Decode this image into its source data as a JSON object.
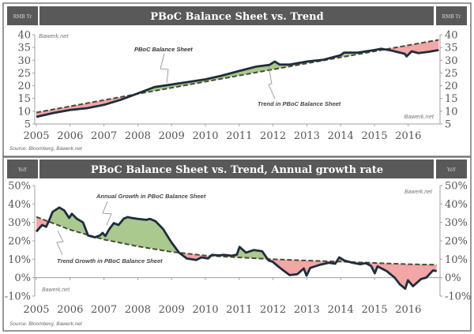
{
  "colors": {
    "header": "#595959",
    "line": "#1f2d3d",
    "trend": "#4a4a3a",
    "above": "#a9c98f",
    "below": "#f2a6a6",
    "axis": "#a0a0a0"
  },
  "chart_data": [
    {
      "type": "area",
      "title": "PBoC Balance Sheet vs. Trend",
      "unit_label": "RMB Tr",
      "source": "Source: Bloomberg, Bawerk.net",
      "watermarks": [
        "Bawerk.net",
        "Bawerk.net"
      ],
      "annotations": [
        "PBoC Balance Sheet",
        "Trend in PBoC Balance Sheet"
      ],
      "xlim": [
        2005,
        2016.9
      ],
      "ylim": [
        5,
        40
      ],
      "x_ticks": [
        "2005",
        "2006",
        "2007",
        "2008",
        "2009",
        "2010",
        "2011",
        "2012",
        "2013",
        "2014",
        "2015",
        "2016"
      ],
      "y_ticks": [
        "5",
        "10",
        "15",
        "20",
        "25",
        "30",
        "35",
        "40"
      ],
      "fill_colors": {
        "above_trend": "#a9c98f",
        "below_trend": "#f2a6a6"
      },
      "series": [
        {
          "name": "PBoC Balance Sheet",
          "style": "solid",
          "x": [
            2005,
            2005.5,
            2006,
            2006.5,
            2007,
            2007.5,
            2008,
            2008.5,
            2009,
            2009.5,
            2010,
            2010.5,
            2011,
            2011.5,
            2011.9,
            2012.05,
            2012.2,
            2012.5,
            2013,
            2013.5,
            2014,
            2014.1,
            2014.5,
            2015,
            2015.2,
            2015.5,
            2015.9,
            2015.95,
            2016.1,
            2016.3,
            2016.6,
            2016.9
          ],
          "y": [
            7.8,
            9.3,
            10.5,
            11.2,
            12.5,
            14.5,
            17,
            19.5,
            20.5,
            21.5,
            22.5,
            24,
            25.8,
            27.5,
            28.2,
            29.5,
            28.3,
            28.3,
            29.5,
            30.2,
            32,
            33,
            33,
            34,
            34.5,
            33.8,
            32.5,
            31.5,
            33.5,
            32.8,
            33.3,
            34
          ]
        },
        {
          "name": "Trend in PBoC Balance Sheet",
          "style": "dashed",
          "x": [
            2005,
            2008,
            2012,
            2016.9
          ],
          "y": [
            9.5,
            16.8,
            26.4,
            38
          ]
        }
      ]
    },
    {
      "type": "area",
      "title": "PBoC Balance Sheet vs. Trend, Annual growth rate",
      "unit_label": "YoY",
      "source": "Source: Bloomberg, Bawerk.net",
      "watermarks": [
        "Bawerk.net",
        "Bawerk.net"
      ],
      "annotations": [
        "Annual Growth in PBoC Balance Sheet",
        "Trend Growth in PBoC Balance Sheet"
      ],
      "xlim": [
        2005,
        2016.9
      ],
      "ylim": [
        -10,
        50
      ],
      "x_ticks": [
        "2005",
        "2006",
        "2007",
        "2008",
        "2009",
        "2010",
        "2011",
        "2012",
        "2013",
        "2014",
        "2015",
        "2016"
      ],
      "y_ticks": [
        "-10%",
        "0%",
        "10%",
        "20%",
        "30%",
        "40%",
        "50%"
      ],
      "fill_colors": {
        "above_trend": "#a9c98f",
        "below_trend": "#f2a6a6"
      },
      "series": [
        {
          "name": "Annual Growth in PBoC Balance Sheet",
          "style": "solid",
          "x": [
            2005,
            2005.17,
            2005.29,
            2005.37,
            2005.48,
            2005.68,
            2005.83,
            2005.97,
            2006.05,
            2006.19,
            2006.38,
            2006.53,
            2006.73,
            2006.88,
            2006.96,
            2007.04,
            2007.16,
            2007.29,
            2007.43,
            2007.59,
            2007.7,
            2007.82,
            2008.01,
            2008.25,
            2008.36,
            2008.52,
            2008.75,
            2008.99,
            2009.22,
            2009.45,
            2009.73,
            2009.88,
            2010.08,
            2010.19,
            2010.39,
            2010.55,
            2010.78,
            2010.93,
            2011.01,
            2011.2,
            2011.43,
            2011.68,
            2011.87,
            2011.99,
            2012.18,
            2012.49,
            2012.72,
            2012.91,
            2012.99,
            2013.1,
            2013.41,
            2013.65,
            2013.84,
            2013.96,
            2014.11,
            2014.35,
            2014.58,
            2014.74,
            2014.9,
            2015.01,
            2015.09,
            2015.36,
            2015.6,
            2015.75,
            2015.91,
            2015.99,
            2016.14,
            2016.38,
            2016.53,
            2016.73,
            2016.84
          ],
          "y": [
            25,
            28.6,
            27.6,
            30.7,
            35.7,
            38.1,
            36.4,
            32.4,
            34.7,
            32.1,
            30,
            22.9,
            21.9,
            22.9,
            24.3,
            22.6,
            26.4,
            29.6,
            28.6,
            32.1,
            32.9,
            32.4,
            31.9,
            31.4,
            31.9,
            30.7,
            26.4,
            19.3,
            13.6,
            10.4,
            9.6,
            11,
            10.4,
            12.4,
            12.1,
            12.4,
            11.9,
            12.5,
            16.7,
            13.6,
            15,
            14.3,
            9.3,
            8.6,
            5.7,
            1.4,
            1.9,
            5,
            1.1,
            5.3,
            7.1,
            8.1,
            7.6,
            11,
            9.3,
            8.1,
            7.3,
            7.9,
            6.4,
            2.4,
            6.1,
            3.6,
            0,
            -3.6,
            -6,
            -1.4,
            -4.6,
            -0.7,
            0,
            3.9,
            3.6
          ]
        },
        {
          "name": "Trend Growth in PBoC Balance Sheet",
          "style": "dashed",
          "x": [
            2005,
            2005.5,
            2006,
            2007,
            2008,
            2009,
            2010,
            2011,
            2012,
            2013,
            2014,
            2015,
            2016,
            2016.84
          ],
          "y": [
            33,
            29.5,
            26,
            20.7,
            17,
            14,
            12,
            11,
            10,
            9.3,
            8.7,
            8,
            7.3,
            7
          ]
        }
      ]
    }
  ]
}
